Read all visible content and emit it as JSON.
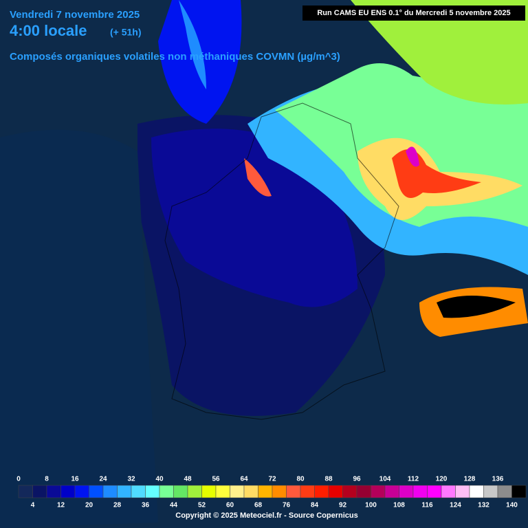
{
  "header": {
    "date": "Vendredi 7 novembre 2025",
    "time": "4:00 locale",
    "lead": "(+ 51h)",
    "variable": "Composés organiques volatiles non méthaniques COVMN (µg/m^3)",
    "run": "Run CAMS EU ENS 0.1° du Mercredi 5 novembre 2025"
  },
  "legend": {
    "ticks": [
      0,
      4,
      8,
      12,
      16,
      20,
      24,
      28,
      32,
      36,
      40,
      44,
      48,
      52,
      56,
      60,
      64,
      68,
      72,
      76,
      80,
      84,
      88,
      92,
      96,
      100,
      104,
      108,
      112,
      116,
      120,
      124,
      128,
      132,
      136,
      140
    ],
    "colors": [
      "#13285a",
      "#0a1464",
      "#0a0a96",
      "#0000c8",
      "#0014f0",
      "#0050ff",
      "#1e8cff",
      "#32b4ff",
      "#50dcff",
      "#64ffff",
      "#78ff96",
      "#64e664",
      "#a0f03c",
      "#e6ff00",
      "#ffff3c",
      "#fff08c",
      "#ffdc64",
      "#ffb400",
      "#ff8c00",
      "#ff5a3c",
      "#ff3c14",
      "#ff1e00",
      "#e60000",
      "#b4001e",
      "#960032",
      "#b4005a",
      "#c80096",
      "#dc00c8",
      "#f000f0",
      "#ff00ff",
      "#ff78ff",
      "#ffbef5",
      "#ffffff",
      "#c8c8c8",
      "#8c8c8c",
      "#000000"
    ]
  },
  "footer": {
    "copyright": "Copyright © 2025 Meteociel.fr - Source Copernicus"
  }
}
